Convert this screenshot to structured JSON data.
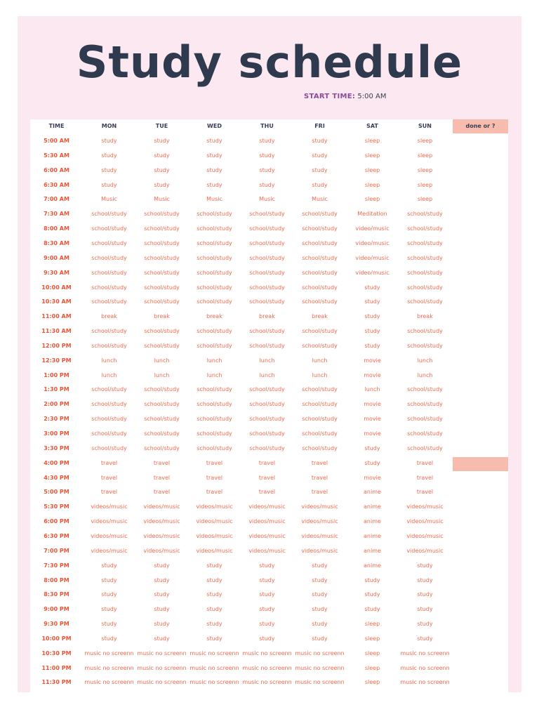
{
  "title": "Study schedule",
  "start_time": {
    "label": "START TIME:",
    "value": "5:00 AM"
  },
  "columns": [
    "TIME",
    "MON",
    "TUE",
    "WED",
    "THU",
    "FRI",
    "SAT",
    "SUN"
  ],
  "done_label": "done or ?",
  "colors": {
    "accent": "#ee5436",
    "header_bg": "#fce8f0",
    "done_bg": "#f7bcae",
    "title": "#2f3a4f"
  },
  "rows": [
    [
      "5:00 AM",
      "study",
      "study",
      "study",
      "study",
      "study",
      "sleep",
      "sleep"
    ],
    [
      "5:30 AM",
      "study",
      "study",
      "study",
      "study",
      "study",
      "sleep",
      "sleep"
    ],
    [
      "6:00 AM",
      "study",
      "study",
      "study",
      "study",
      "study",
      "sleep",
      "sleep"
    ],
    [
      "6:30 AM",
      "study",
      "study",
      "study",
      "study",
      "study",
      "sleep",
      "sleep"
    ],
    [
      "7:00 AM",
      "Music",
      "Music",
      "Music",
      "Music",
      "Music",
      "sleep",
      "sleep"
    ],
    [
      "7:30 AM",
      "school/study",
      "school/study",
      "school/study",
      "school/study",
      "school/study",
      "Meditation",
      "school/study"
    ],
    [
      "8:00 AM",
      "school/study",
      "school/study",
      "school/study",
      "school/study",
      "school/study",
      "video/music",
      "school/study"
    ],
    [
      "8:30 AM",
      "school/study",
      "school/study",
      "school/study",
      "school/study",
      "school/study",
      "video/music",
      "school/study"
    ],
    [
      "9:00 AM",
      "school/study",
      "school/study",
      "school/study",
      "school/study",
      "school/study",
      "video/music",
      "school/study"
    ],
    [
      "9:30 AM",
      "school/study",
      "school/study",
      "school/study",
      "school/study",
      "school/study",
      "video/music",
      "school/study"
    ],
    [
      "10:00 AM",
      "school/study",
      "school/study",
      "school/study",
      "school/study",
      "school/study",
      "study",
      "school/study"
    ],
    [
      "10:30 AM",
      "school/study",
      "school/study",
      "school/study",
      "school/study",
      "school/study",
      "study",
      "school/study"
    ],
    [
      "11:00 AM",
      "break",
      "break",
      "break",
      "break",
      "break",
      "study",
      "break"
    ],
    [
      "11:30 AM",
      "school/study",
      "school/study",
      "school/study",
      "school/study",
      "school/study",
      "study",
      "school/study"
    ],
    [
      "12:00 PM",
      "school/study",
      "school/study",
      "school/study",
      "school/study",
      "school/study",
      "study",
      "school/study"
    ],
    [
      "12:30 PM",
      "lunch",
      "lunch",
      "lunch",
      "lunch",
      "lunch",
      "movie",
      "lunch"
    ],
    [
      "1:00 PM",
      "lunch",
      "lunch",
      "lunch",
      "lunch",
      "lunch",
      "movie",
      "lunch"
    ],
    [
      "1:30 PM",
      "school/study",
      "school/study",
      "school/study",
      "school/study",
      "school/study",
      "lunch",
      "school/study"
    ],
    [
      "2:00 PM",
      "school/study",
      "school/study",
      "school/study",
      "school/study",
      "school/study",
      "movie",
      "school/study"
    ],
    [
      "2:30 PM",
      "school/study",
      "school/study",
      "school/study",
      "school/study",
      "school/study",
      "movie",
      "school/study"
    ],
    [
      "3:00 PM",
      "school/study",
      "school/study",
      "school/study",
      "school/study",
      "school/study",
      "movie",
      "school/study"
    ],
    [
      "3:30 PM",
      "school/study",
      "school/study",
      "school/study",
      "school/study",
      "school/study",
      "study",
      "school/study"
    ],
    [
      "4:00 PM",
      "travel",
      "travel",
      "travel",
      "travel",
      "travel",
      "study",
      "travel"
    ],
    [
      "4:30 PM",
      "travel",
      "travel",
      "travel",
      "travel",
      "travel",
      "movie",
      "travel"
    ],
    [
      "5:00 PM",
      "travel",
      "travel",
      "travel",
      "travel",
      "travel",
      "anime",
      "travel"
    ],
    [
      "5:30 PM",
      "videos/music",
      "videos/music",
      "videos/music",
      "videos/music",
      "videos/music",
      "anime",
      "videos/music"
    ],
    [
      "6:00 PM",
      "videos/music",
      "videos/music",
      "videos/music",
      "videos/music",
      "videos/music",
      "anime",
      "videos/music"
    ],
    [
      "6:30 PM",
      "videos/music",
      "videos/music",
      "videos/music",
      "videos/music",
      "videos/music",
      "anime",
      "videos/music"
    ],
    [
      "7:00 PM",
      "videos/music",
      "videos/music",
      "videos/music",
      "videos/music",
      "videos/music",
      "anime",
      "videos/music"
    ],
    [
      "7:30 PM",
      "study",
      "study",
      "study",
      "study",
      "study",
      "anime",
      "study"
    ],
    [
      "8:00 PM",
      "study",
      "study",
      "study",
      "study",
      "study",
      "study",
      "study"
    ],
    [
      "8:30 PM",
      "study",
      "study",
      "study",
      "study",
      "study",
      "study",
      "study"
    ],
    [
      "9:00 PM",
      "study",
      "study",
      "study",
      "study",
      "study",
      "study",
      "study"
    ],
    [
      "9:30 PM",
      "study",
      "study",
      "study",
      "study",
      "study",
      "sleep",
      "study"
    ],
    [
      "10:00 PM",
      "study",
      "study",
      "study",
      "study",
      "study",
      "sleep",
      "study"
    ],
    [
      "10:30 PM",
      "music no screenn",
      "music no screenn",
      "music no screenn",
      "music no screenn",
      "music no screenn",
      "sleep",
      "music no screenn"
    ],
    [
      "11:00 PM",
      "music no screenn",
      "music no screenn",
      "music no screenn",
      "music no screenn",
      "music no screenn",
      "sleep",
      "music no screenn"
    ],
    [
      "11:30 PM",
      "music no screenn",
      "music no screenn",
      "music no screenn",
      "music no screenn",
      "music no screenn",
      "sleep",
      "music no screenn"
    ]
  ]
}
